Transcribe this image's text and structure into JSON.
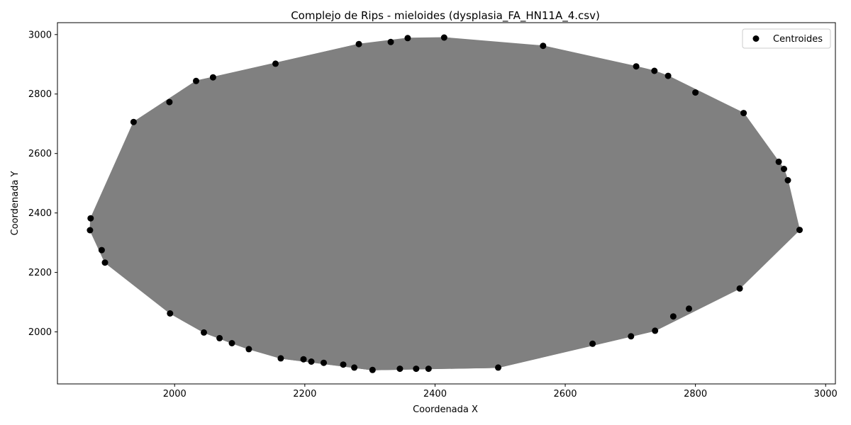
{
  "chart_data": {
    "type": "scatter",
    "title": "Complejo de Rips - mieloides (dysplasia_FA_HN11A_4.csv)",
    "xlabel": "Coordenada X",
    "ylabel": "Coordenada Y",
    "xlim": [
      1820,
      3015
    ],
    "ylim": [
      1825,
      3040
    ],
    "xticks": [
      2000,
      2200,
      2400,
      2600,
      2800,
      3000
    ],
    "yticks": [
      2000,
      2200,
      2400,
      2600,
      2800,
      3000
    ],
    "legend": {
      "position": "top-right",
      "entries": [
        "Centroides"
      ]
    },
    "colors": {
      "points": "#000000",
      "edges": "#808080",
      "fill": "#808080"
    },
    "series": [
      {
        "name": "Centroides",
        "points": [
          [
            2414,
            2990
          ],
          [
            2358,
            2988
          ],
          [
            2332,
            2975
          ],
          [
            2283,
            2968
          ],
          [
            2155,
            2902
          ],
          [
            2059,
            2856
          ],
          [
            2033,
            2844
          ],
          [
            1992,
            2773
          ],
          [
            1937,
            2706
          ],
          [
            1871,
            2382
          ],
          [
            1870,
            2342
          ],
          [
            1888,
            2275
          ],
          [
            1893,
            2233
          ],
          [
            1993,
            2062
          ],
          [
            2045,
            1998
          ],
          [
            2069,
            1979
          ],
          [
            2088,
            1962
          ],
          [
            2114,
            1942
          ],
          [
            2163,
            1911
          ],
          [
            2198,
            1908
          ],
          [
            2210,
            1900
          ],
          [
            2229,
            1896
          ],
          [
            2259,
            1890
          ],
          [
            2276,
            1880
          ],
          [
            2304,
            1872
          ],
          [
            2346,
            1876
          ],
          [
            2371,
            1876
          ],
          [
            2390,
            1876
          ],
          [
            2497,
            1880
          ],
          [
            2642,
            1960
          ],
          [
            2701,
            1985
          ],
          [
            2738,
            2004
          ],
          [
            2766,
            2052
          ],
          [
            2790,
            2078
          ],
          [
            2868,
            2146
          ],
          [
            2960,
            2343
          ],
          [
            2942,
            2510
          ],
          [
            2936,
            2548
          ],
          [
            2928,
            2572
          ],
          [
            2874,
            2736
          ],
          [
            2800,
            2805
          ],
          [
            2758,
            2861
          ],
          [
            2737,
            2878
          ],
          [
            2709,
            2893
          ],
          [
            2566,
            2962
          ]
        ]
      }
    ]
  }
}
